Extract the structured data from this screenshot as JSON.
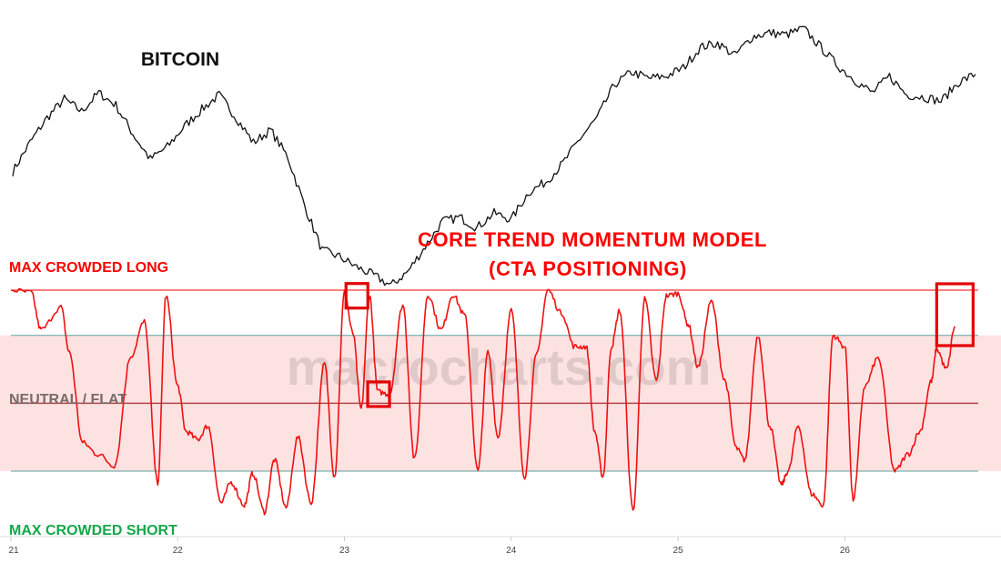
{
  "chart_data": [
    {
      "type": "line",
      "title": "BITCOIN",
      "series": [
        {
          "values": [
            0.26,
            0.4,
            0.52,
            0.61,
            0.55,
            0.64,
            0.58,
            0.44,
            0.32,
            0.38,
            0.48,
            0.56,
            0.63,
            0.52,
            0.4,
            0.46,
            0.33,
            0.09,
            -0.12,
            -0.15,
            -0.2,
            -0.24,
            -0.29,
            -0.22,
            -0.1,
            0.02,
            0.04,
            -0.01,
            0.06,
            0.03,
            0.16,
            0.21,
            0.3,
            0.42,
            0.52,
            0.68,
            0.74,
            0.71,
            0.72,
            0.76,
            0.86,
            0.88,
            0.82,
            0.91,
            0.93,
            0.92,
            0.95,
            0.86,
            0.77,
            0.7,
            0.64,
            0.72,
            0.63,
            0.62,
            0.6,
            0.69,
            0.73
          ]
        }
      ],
      "color": "#111111"
    },
    {
      "type": "line",
      "title": "CORE TREND MOMENTUM MODEL\n(CTA POSITIONING)",
      "x": [
        21.0,
        21.12,
        21.18,
        21.3,
        21.35,
        21.43,
        21.52,
        21.62,
        21.72,
        21.8,
        21.88,
        21.93,
        22.0,
        22.05,
        22.12,
        22.18,
        22.26,
        22.32,
        22.4,
        22.45,
        22.52,
        22.58,
        22.65,
        22.72,
        22.8,
        22.88,
        22.94,
        23.0,
        23.05,
        23.1,
        23.15,
        23.2,
        23.27,
        23.35,
        23.42,
        23.5,
        23.58,
        23.65,
        23.72,
        23.8,
        23.86,
        23.92,
        24.0,
        24.08,
        24.15,
        24.22,
        24.3,
        24.38,
        24.45,
        24.5,
        24.55,
        24.6,
        24.65,
        24.73,
        24.8,
        24.87,
        24.93,
        25.0,
        25.06,
        25.12,
        25.2,
        25.28,
        25.35,
        25.4,
        25.48,
        25.55,
        25.62,
        25.66,
        25.72,
        25.8,
        25.87,
        25.93,
        26.0,
        26.05,
        26.12,
        26.2,
        26.3,
        26.38,
        26.45,
        26.52,
        26.55,
        26.61,
        26.66
      ],
      "values": [
        1.0,
        0.98,
        0.65,
        0.85,
        0.45,
        -0.35,
        -0.45,
        -0.55,
        0.42,
        0.72,
        -0.7,
        0.95,
        0.15,
        -0.25,
        -0.32,
        -0.2,
        -0.88,
        -0.7,
        -0.9,
        -0.62,
        -0.96,
        -0.5,
        -0.92,
        -0.3,
        -0.88,
        0.35,
        -0.65,
        0.98,
        0.62,
        -0.05,
        0.95,
        0.1,
        0.08,
        0.87,
        -0.5,
        0.96,
        0.65,
        0.96,
        0.78,
        -0.6,
        0.45,
        -0.3,
        0.82,
        -0.65,
        0.42,
        1.0,
        0.8,
        0.5,
        0.5,
        -0.25,
        -0.65,
        0.5,
        0.82,
        -0.95,
        0.92,
        0.2,
        0.95,
        0.97,
        0.7,
        0.32,
        0.9,
        0.2,
        -0.4,
        -0.5,
        0.6,
        -0.2,
        -0.72,
        -0.6,
        -0.2,
        -0.8,
        -0.9,
        0.6,
        0.5,
        -0.85,
        0.15,
        0.4,
        -0.6,
        -0.45,
        -0.25,
        0.2,
        0.48,
        0.3,
        0.68
      ],
      "xlim": [
        21.0,
        26.8
      ],
      "ylim": [
        -1.4,
        1.1
      ],
      "xticks": [
        "21",
        "22",
        "23",
        "24",
        "25",
        "26"
      ],
      "reference_lines": [
        {
          "label": "MAX CROWDED LONG",
          "value": 1.0,
          "color": "#ff0000"
        },
        {
          "label": "",
          "value": 0.6,
          "color": "#5fa3a0"
        },
        {
          "label": "NEUTRAL / FLAT",
          "value": 0.0,
          "color": "#b24545"
        },
        {
          "label": "",
          "value": -0.6,
          "color": "#5fa3a0"
        },
        {
          "label": "MAX CROWDED SHORT",
          "value": -1.4,
          "color": "#14a84a"
        }
      ],
      "shaded_band": [
        -0.6,
        0.6
      ],
      "highlight_boxes": [
        {
          "x": 23.08,
          "y": 0.95
        },
        {
          "x": 23.21,
          "y": 0.08
        },
        {
          "x": 26.66,
          "y": 0.68
        }
      ],
      "watermark": "macrocharts.com",
      "colors": {
        "line": "#ee1111",
        "band": "#fde2e2",
        "title": "#ff0000"
      }
    }
  ]
}
